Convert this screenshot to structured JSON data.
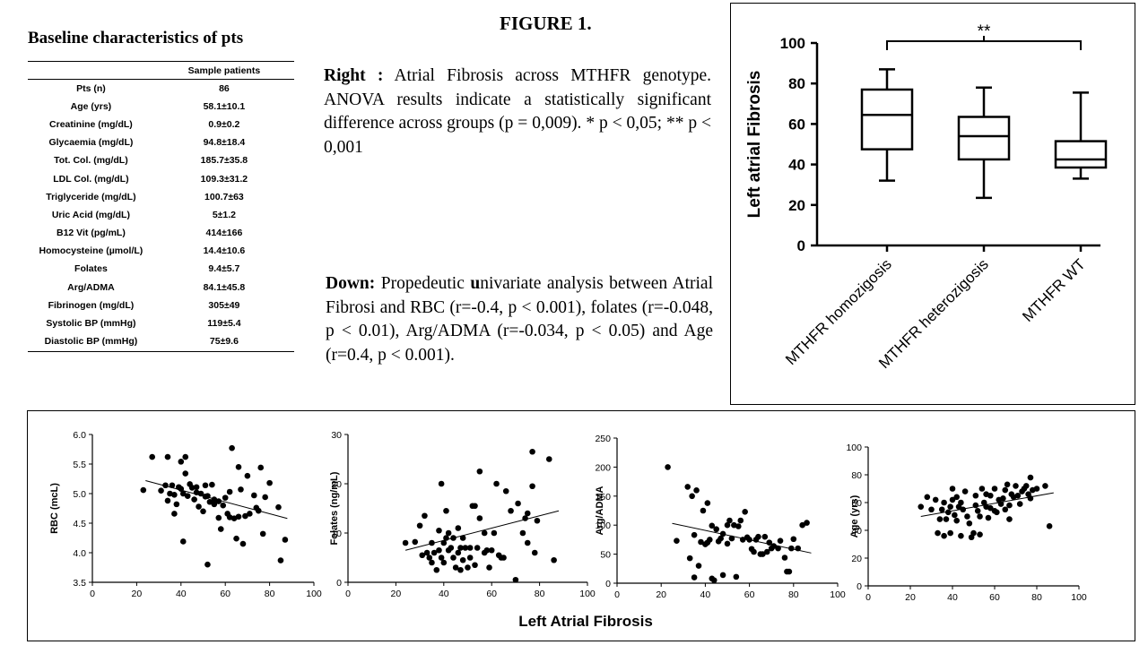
{
  "table": {
    "title": "Baseline characteristics of pts",
    "col_header": "Sample patients",
    "rows": [
      {
        "label": "Pts (n)",
        "value": "86"
      },
      {
        "label": "Age (yrs)",
        "value": "58.1±10.1"
      },
      {
        "label": "Creatinine (mg/dL)",
        "value": "0.9±0.2"
      },
      {
        "label": "Glycaemia (mg/dL)",
        "value": "94.8±18.4"
      },
      {
        "label": "Tot. Col. (mg/dL)",
        "value": "185.7±35.8"
      },
      {
        "label": "LDL Col. (mg/dL)",
        "value": "109.3±31.2"
      },
      {
        "label": "Triglyceride (mg/dL)",
        "value": "100.7±63"
      },
      {
        "label": "Uric Acid (mg/dL)",
        "value": "5±1.2"
      },
      {
        "label": "B12 Vit (pg/mL)",
        "value": "414±166"
      },
      {
        "label": "Homocysteine (µmol/L)",
        "value": "14.4±10.6"
      },
      {
        "label": "Folates",
        "value": "9.4±5.7"
      },
      {
        "label": "Arg/ADMA",
        "value": "84.1±45.8"
      },
      {
        "label": "Fibrinogen (mg/dL)",
        "value": "305±49"
      },
      {
        "label": "Systolic BP (mmHg)",
        "value": "119±5.4"
      },
      {
        "label": "Diastolic BP (mmHg)",
        "value": "75±9.6"
      }
    ]
  },
  "figure_title": "FIGURE 1.",
  "caption_right": {
    "label": "Right :",
    "text": "Atrial Fibrosis across MTHFR genotype. ANOVA results indicate a statistically significant difference across groups (p = 0,009). * p < 0,05; ** p < 0,001"
  },
  "caption_down": {
    "label": "Down:",
    "text_before": "Propedeutic",
    "bold_letter": "u",
    "text_after": "nivariate analysis between Atrial Fibrosi and RBC (r=-0.4, p < 0.001), folates (r=-0.048, p < 0.01), Arg/ADMA (r=-0.034, p < 0.05) and Age (r=0.4, p < 0.001)."
  },
  "scatter_shared_xlabel": "Left Atrial Fibrosis",
  "chart_data": [
    {
      "type": "box",
      "ylabel": "Left atrial Fibrosis",
      "ylim": [
        0,
        100
      ],
      "yticks": [
        0,
        20,
        40,
        60,
        80,
        100
      ],
      "categories": [
        "MTHFR homozigosis",
        "MTHFR heterozigosis",
        "MTHFR WT"
      ],
      "boxes": [
        {
          "min": 32,
          "q1": 47.5,
          "median": 64.5,
          "q3": 77,
          "max": 87
        },
        {
          "min": 23.5,
          "q1": 42.5,
          "median": 54,
          "q3": 63.5,
          "max": 78
        },
        {
          "min": 33,
          "q1": 38.5,
          "median": 42.5,
          "q3": 51.5,
          "max": 75.5
        }
      ],
      "annotation": {
        "text": "**",
        "between": [
          0,
          2
        ]
      }
    },
    {
      "type": "scatter",
      "ylabel": "RBC (mcL)",
      "xlim": [
        0,
        100
      ],
      "ylim": [
        3.5,
        6.0
      ],
      "xticks": [
        0,
        20,
        40,
        60,
        80,
        100
      ],
      "yticks": [
        "3.5",
        "4.0",
        "4.5",
        "5.0",
        "5.5",
        "6.0"
      ],
      "trendline": [
        [
          24,
          5.22
        ],
        [
          88,
          4.58
        ]
      ],
      "points": [
        [
          23,
          5.06
        ],
        [
          27,
          5.62
        ],
        [
          31,
          5.05
        ],
        [
          33,
          5.14
        ],
        [
          34,
          5.62
        ],
        [
          34,
          4.88
        ],
        [
          35,
          5.0
        ],
        [
          36,
          5.14
        ],
        [
          37,
          4.66
        ],
        [
          37,
          4.98
        ],
        [
          38,
          4.82
        ],
        [
          39,
          5.11
        ],
        [
          40,
          5.08
        ],
        [
          40,
          5.54
        ],
        [
          41,
          4.19
        ],
        [
          41,
          5.0
        ],
        [
          42,
          5.34
        ],
        [
          42,
          5.62
        ],
        [
          43,
          4.96
        ],
        [
          44,
          5.16
        ],
        [
          45,
          5.1
        ],
        [
          46,
          4.9
        ],
        [
          47,
          5.02
        ],
        [
          47,
          5.11
        ],
        [
          48,
          4.78
        ],
        [
          49,
          5.0
        ],
        [
          50,
          4.7
        ],
        [
          51,
          4.95
        ],
        [
          51,
          5.14
        ],
        [
          52,
          3.8
        ],
        [
          52,
          4.96
        ],
        [
          53,
          4.86
        ],
        [
          54,
          5.15
        ],
        [
          55,
          4.9
        ],
        [
          55,
          4.82
        ],
        [
          57,
          4.59
        ],
        [
          57,
          4.87
        ],
        [
          58,
          4.4
        ],
        [
          59,
          4.8
        ],
        [
          60,
          4.93
        ],
        [
          61,
          4.66
        ],
        [
          62,
          5.03
        ],
        [
          62,
          4.6
        ],
        [
          63,
          5.77
        ],
        [
          64,
          4.58
        ],
        [
          65,
          4.24
        ],
        [
          66,
          4.61
        ],
        [
          66,
          5.45
        ],
        [
          67,
          5.07
        ],
        [
          68,
          4.15
        ],
        [
          69,
          4.62
        ],
        [
          70,
          5.3
        ],
        [
          71,
          4.66
        ],
        [
          73,
          4.97
        ],
        [
          74,
          4.76
        ],
        [
          75,
          4.71
        ],
        [
          76,
          5.44
        ],
        [
          77,
          4.32
        ],
        [
          78,
          4.94
        ],
        [
          80,
          5.18
        ],
        [
          84,
          4.77
        ],
        [
          85,
          3.87
        ],
        [
          87,
          4.22
        ]
      ]
    },
    {
      "type": "scatter",
      "ylabel": "Folates (ng/mL)",
      "xlim": [
        0,
        100
      ],
      "ylim": [
        0,
        30
      ],
      "xticks": [
        0,
        20,
        40,
        60,
        80,
        100
      ],
      "yticks": [
        "0",
        "10",
        "20",
        "30"
      ],
      "trendline": [
        [
          24,
          6.5
        ],
        [
          88,
          14.5
        ]
      ],
      "points": [
        [
          24,
          8
        ],
        [
          28,
          8.2
        ],
        [
          30,
          11.5
        ],
        [
          31,
          5.5
        ],
        [
          32,
          13.5
        ],
        [
          33,
          6
        ],
        [
          34,
          5
        ],
        [
          35,
          4
        ],
        [
          35,
          8
        ],
        [
          36,
          6
        ],
        [
          37,
          2.5
        ],
        [
          38,
          10.5
        ],
        [
          38,
          6.5
        ],
        [
          39,
          20
        ],
        [
          39,
          5
        ],
        [
          40,
          8
        ],
        [
          40,
          4
        ],
        [
          41,
          14.5
        ],
        [
          41,
          9
        ],
        [
          42,
          6.5
        ],
        [
          42,
          10
        ],
        [
          43,
          7
        ],
        [
          44,
          5
        ],
        [
          44,
          9
        ],
        [
          45,
          3
        ],
        [
          46,
          11
        ],
        [
          46,
          6
        ],
        [
          47,
          7
        ],
        [
          47,
          2.5
        ],
        [
          48,
          4.5
        ],
        [
          48,
          9
        ],
        [
          49,
          7
        ],
        [
          50,
          3
        ],
        [
          51,
          7
        ],
        [
          51,
          5
        ],
        [
          52,
          15.5
        ],
        [
          53,
          3.5
        ],
        [
          53,
          15.5
        ],
        [
          54,
          7
        ],
        [
          55,
          22.5
        ],
        [
          55,
          13
        ],
        [
          57,
          6
        ],
        [
          57,
          10
        ],
        [
          58,
          6.5
        ],
        [
          59,
          3
        ],
        [
          60,
          6.5
        ],
        [
          61,
          10
        ],
        [
          62,
          20
        ],
        [
          63,
          5.5
        ],
        [
          64,
          5
        ],
        [
          65,
          5
        ],
        [
          66,
          18.5
        ],
        [
          68,
          14.5
        ],
        [
          70,
          0.5
        ],
        [
          71,
          16
        ],
        [
          73,
          10
        ],
        [
          74,
          13
        ],
        [
          75,
          8
        ],
        [
          75,
          14
        ],
        [
          77,
          26.5
        ],
        [
          77,
          19.5
        ],
        [
          78,
          6
        ],
        [
          79,
          12.5
        ],
        [
          84,
          25
        ],
        [
          86,
          4.5
        ]
      ]
    },
    {
      "type": "scatter",
      "ylabel": "Arg/ADMA",
      "xlim": [
        0,
        100
      ],
      "ylim": [
        0,
        250
      ],
      "xticks": [
        0,
        20,
        40,
        60,
        80,
        100
      ],
      "yticks": [
        "0",
        "50",
        "100",
        "150",
        "200",
        "250"
      ],
      "trendline": [
        [
          25,
          103
        ],
        [
          88,
          52
        ]
      ],
      "points": [
        [
          23,
          200
        ],
        [
          27,
          73
        ],
        [
          32,
          166
        ],
        [
          33,
          43
        ],
        [
          34,
          150
        ],
        [
          35,
          10
        ],
        [
          35,
          83
        ],
        [
          36,
          160
        ],
        [
          37,
          30
        ],
        [
          38,
          71
        ],
        [
          39,
          125
        ],
        [
          40,
          67
        ],
        [
          41,
          138
        ],
        [
          41,
          70
        ],
        [
          42,
          75
        ],
        [
          43,
          99
        ],
        [
          43,
          8
        ],
        [
          44,
          5
        ],
        [
          45,
          93
        ],
        [
          46,
          72
        ],
        [
          47,
          77
        ],
        [
          48,
          85
        ],
        [
          48,
          14
        ],
        [
          50,
          68
        ],
        [
          50,
          100
        ],
        [
          51,
          108
        ],
        [
          52,
          77
        ],
        [
          53,
          100
        ],
        [
          54,
          11
        ],
        [
          55,
          98
        ],
        [
          56,
          108
        ],
        [
          57,
          75
        ],
        [
          58,
          123
        ],
        [
          59,
          79
        ],
        [
          60,
          75
        ],
        [
          61,
          59
        ],
        [
          62,
          54
        ],
        [
          63,
          75
        ],
        [
          64,
          80
        ],
        [
          65,
          50
        ],
        [
          66,
          50
        ],
        [
          67,
          80
        ],
        [
          68,
          54
        ],
        [
          69,
          70
        ],
        [
          70,
          60
        ],
        [
          71,
          64
        ],
        [
          73,
          60
        ],
        [
          74,
          73
        ],
        [
          76,
          44
        ],
        [
          77,
          20
        ],
        [
          78,
          20
        ],
        [
          79,
          60
        ],
        [
          80,
          76
        ],
        [
          82,
          60
        ],
        [
          84,
          100
        ],
        [
          86,
          104
        ]
      ]
    },
    {
      "type": "scatter",
      "ylabel": "Age (yrs)",
      "xlim": [
        0,
        100
      ],
      "ylim": [
        0,
        100
      ],
      "xticks": [
        0,
        20,
        40,
        60,
        80,
        100
      ],
      "yticks": [
        "0",
        "20",
        "40",
        "60",
        "80",
        "100"
      ],
      "trendline": [
        [
          25,
          50
        ],
        [
          88,
          67
        ]
      ],
      "points": [
        [
          25,
          57
        ],
        [
          28,
          64
        ],
        [
          30,
          55
        ],
        [
          32,
          62
        ],
        [
          33,
          38
        ],
        [
          34,
          48
        ],
        [
          35,
          55
        ],
        [
          36,
          60
        ],
        [
          36,
          36
        ],
        [
          37,
          48
        ],
        [
          38,
          53
        ],
        [
          39,
          57
        ],
        [
          39,
          38
        ],
        [
          40,
          62
        ],
        [
          40,
          70
        ],
        [
          41,
          51
        ],
        [
          42,
          64
        ],
        [
          42,
          47
        ],
        [
          43,
          57
        ],
        [
          44,
          60
        ],
        [
          44,
          36
        ],
        [
          45,
          55
        ],
        [
          46,
          68
        ],
        [
          47,
          50
        ],
        [
          48,
          45
        ],
        [
          49,
          35
        ],
        [
          50,
          38
        ],
        [
          51,
          58
        ],
        [
          51,
          65
        ],
        [
          52,
          54
        ],
        [
          53,
          50
        ],
        [
          53,
          37
        ],
        [
          54,
          70
        ],
        [
          55,
          60
        ],
        [
          56,
          57
        ],
        [
          56,
          66
        ],
        [
          57,
          49
        ],
        [
          58,
          56
        ],
        [
          58,
          65
        ],
        [
          60,
          54
        ],
        [
          60,
          70
        ],
        [
          61,
          53
        ],
        [
          62,
          62
        ],
        [
          63,
          59
        ],
        [
          64,
          63
        ],
        [
          65,
          55
        ],
        [
          65,
          69
        ],
        [
          66,
          73
        ],
        [
          67,
          58
        ],
        [
          67,
          48
        ],
        [
          68,
          66
        ],
        [
          69,
          64
        ],
        [
          70,
          72
        ],
        [
          71,
          65
        ],
        [
          72,
          59
        ],
        [
          73,
          68
        ],
        [
          74,
          70
        ],
        [
          75,
          72
        ],
        [
          76,
          66
        ],
        [
          77,
          63
        ],
        [
          77,
          78
        ],
        [
          78,
          69
        ],
        [
          80,
          70
        ],
        [
          84,
          72
        ],
        [
          86,
          43
        ]
      ]
    }
  ]
}
